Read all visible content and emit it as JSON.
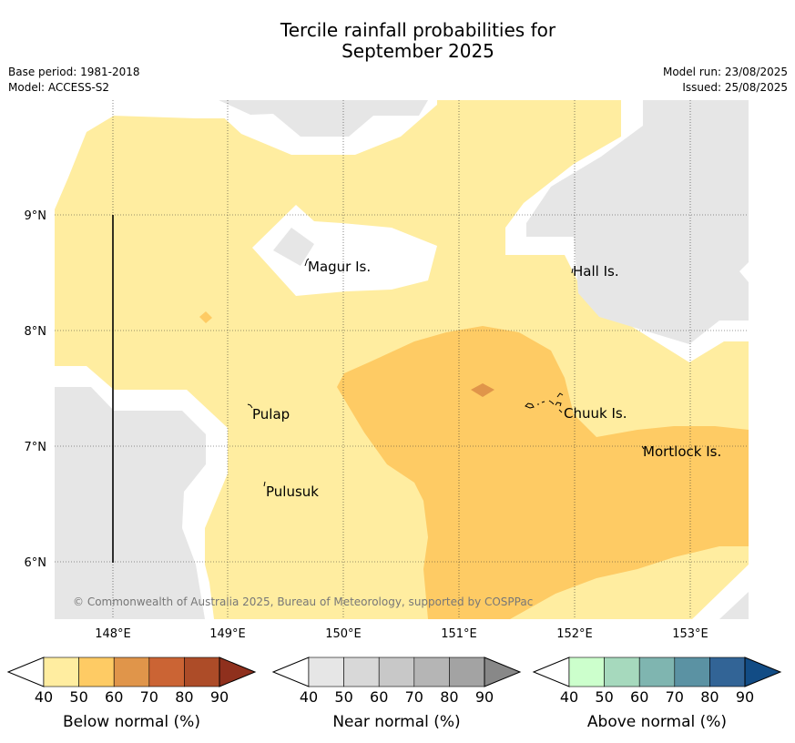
{
  "title_line1": "Tercile rainfall probabilities for",
  "title_line2": "September 2025",
  "meta": {
    "base_period": "Base period: 1981-2018",
    "model": "Model: ACCESS-S2",
    "model_run": "Model run: 23/08/2025",
    "issued": "Issued: 25/08/2025"
  },
  "map": {
    "lat_ticks": [
      "9°N",
      "8°N",
      "7°N",
      "6°N"
    ],
    "lon_ticks": [
      "148°E",
      "149°E",
      "150°E",
      "151°E",
      "152°E",
      "153°E"
    ],
    "places": [
      "Magur Is.",
      "Hall Is.",
      "Pulap",
      "Chuuk Is.",
      "Mortlock Is.",
      "Pulusuk"
    ],
    "copyright": "© Commonwealth of Australia 2025, Bureau of Meteorology, supported by COSPPac"
  },
  "colorbars": [
    {
      "label": "Below normal (%)",
      "ticks": [
        "40",
        "50",
        "60",
        "70",
        "80",
        "90"
      ],
      "colors": [
        "#ffeda0",
        "#fecb64",
        "#e0954a",
        "#cb6434",
        "#ad4c28",
        "#8f301d"
      ]
    },
    {
      "label": "Near normal (%)",
      "ticks": [
        "40",
        "50",
        "60",
        "70",
        "80",
        "90"
      ],
      "colors": [
        "#e6e6e6",
        "#d8d8d8",
        "#c8c8c8",
        "#b5b5b5",
        "#a3a3a3",
        "#888888"
      ]
    },
    {
      "label": "Above normal (%)",
      "ticks": [
        "40",
        "50",
        "60",
        "70",
        "80",
        "90"
      ],
      "colors": [
        "#ccffcc",
        "#a6d9bd",
        "#7fb5b0",
        "#5b92a3",
        "#326496",
        "#124c85"
      ]
    }
  ]
}
